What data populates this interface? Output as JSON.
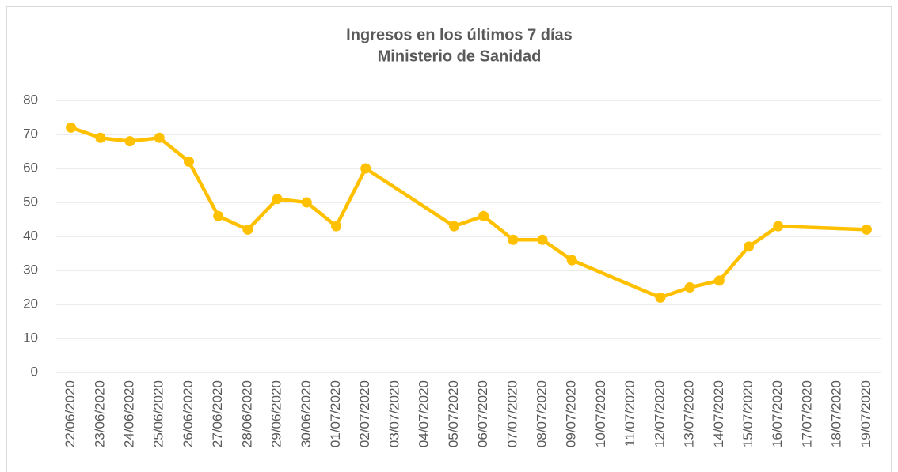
{
  "chart_data": {
    "type": "line",
    "title": "Ingresos en los últimos 7 días",
    "subtitle": "Ministerio de Sanidad",
    "xticks": [
      "22/06/2020",
      "23/06/2020",
      "24/06/2020",
      "25/06/2020",
      "26/06/2020",
      "27/06/2020",
      "28/06/2020",
      "29/06/2020",
      "30/06/2020",
      "01/07/2020",
      "02/07/2020",
      "03/07/2020",
      "04/07/2020",
      "05/07/2020",
      "06/07/2020",
      "07/07/2020",
      "08/07/2020",
      "09/07/2020",
      "10/07/2020",
      "11/07/2020",
      "12/07/2020",
      "13/07/2020",
      "14/07/2020",
      "15/07/2020",
      "16/07/2020",
      "17/07/2020",
      "18/07/2020",
      "19/07/2020"
    ],
    "x": [
      "22/06/2020",
      "23/06/2020",
      "24/06/2020",
      "25/06/2020",
      "26/06/2020",
      "27/06/2020",
      "28/06/2020",
      "29/06/2020",
      "30/06/2020",
      "01/07/2020",
      "02/07/2020",
      "05/07/2020",
      "06/07/2020",
      "07/07/2020",
      "08/07/2020",
      "09/07/2020",
      "12/07/2020",
      "13/07/2020",
      "14/07/2020",
      "15/07/2020",
      "16/07/2020",
      "19/07/2020"
    ],
    "values": [
      72,
      69,
      68,
      69,
      62,
      46,
      42,
      51,
      50,
      43,
      60,
      43,
      46,
      39,
      39,
      33,
      22,
      25,
      27,
      37,
      43,
      42
    ],
    "color": "#FFC000",
    "ylim": [
      0,
      80
    ],
    "yticks": [
      0,
      10,
      20,
      30,
      40,
      50,
      60,
      70,
      80
    ],
    "grid": true
  }
}
